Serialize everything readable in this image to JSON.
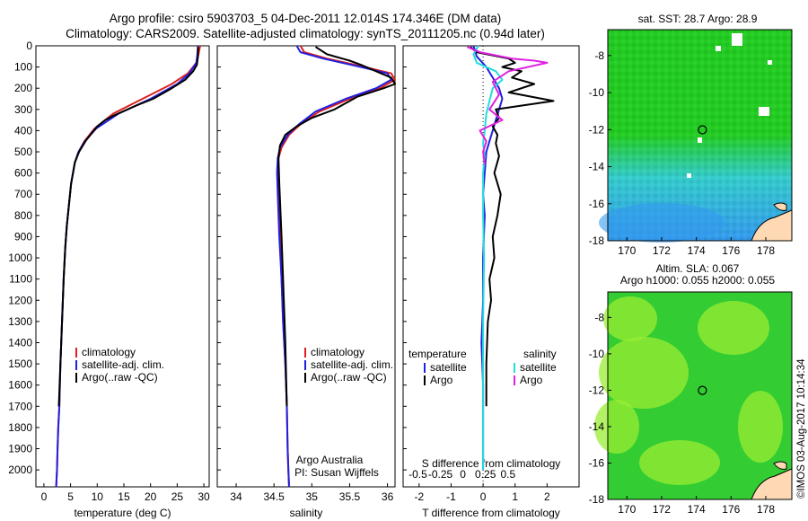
{
  "header": {
    "title_line1": "Argo profile: csiro 5903703_5 04-Dec-2011 12.014S 174.346E (DM data)",
    "title_line2": "Climatology: CARS2009. Satellite-adjusted climatology: synTS_20111205.nc (0.94d later)"
  },
  "maps": {
    "sst_title": "sat. SST: 28.7 Argo: 28.9",
    "sla_title_line1": "Altim. SLA: 0.067",
    "sla_title_line2": "Argo h1000: 0.055 h2000: 0.055",
    "lon_ticks": [
      170,
      172,
      174,
      176,
      178
    ],
    "lat_ticks": [
      -8,
      -10,
      -12,
      -14,
      -16,
      -18
    ],
    "lon_range": [
      168.9,
      179.5
    ],
    "lat_range": [
      -18,
      -6.6
    ],
    "argo_position": {
      "lon": 174.35,
      "lat": -12.01
    },
    "sst_colors": {
      "green": "#22cc22",
      "cyan": "#33cccc",
      "blue": "#3399ee"
    },
    "sla_colors": {
      "green": "#33cc33",
      "yellow_green": "#99ee33"
    },
    "land_color": "#ffd9b3"
  },
  "footer": {
    "stamp": "©IMOS 03-Aug-2017 10:14:34"
  },
  "chart_data": [
    {
      "type": "line",
      "xlabel": "temperature (deg C)",
      "ylabel": "",
      "xlim": [
        -1.5,
        31
      ],
      "ylim": [
        2080,
        0
      ],
      "xticks": [
        0,
        5,
        10,
        15,
        20,
        25,
        30
      ],
      "yticks": [
        0,
        100,
        200,
        300,
        400,
        500,
        600,
        700,
        800,
        900,
        1000,
        1100,
        1200,
        1300,
        1400,
        1500,
        1600,
        1700,
        1800,
        1900,
        2000
      ],
      "legend": {
        "placement": "bottom-center",
        "entries": [
          "climatology",
          "satellite-adj. clim.",
          "Argo(..raw -QC)"
        ]
      },
      "series": [
        {
          "name": "climatology",
          "color": "#e02020",
          "x": [
            29.3,
            29.0,
            28.6,
            27.0,
            24.0,
            18.5,
            13.0,
            9.5,
            7.6,
            6.5,
            5.8,
            5.1,
            4.7,
            4.3,
            4.0,
            3.7,
            3.4,
            3.1,
            2.9,
            2.7,
            2.55,
            2.45,
            2.35,
            2.3
          ],
          "y": [
            0,
            40,
            80,
            130,
            180,
            250,
            320,
            390,
            450,
            500,
            550,
            650,
            750,
            850,
            950,
            1100,
            1300,
            1500,
            1700,
            1800,
            1900,
            2000,
            2050,
            2080
          ]
        },
        {
          "name": "satellite-adj. clim.",
          "color": "#2020e0",
          "x": [
            28.9,
            28.8,
            28.6,
            27.3,
            25.0,
            20.0,
            14.0,
            9.8,
            7.7,
            6.5,
            5.8,
            5.1,
            4.7,
            4.3,
            4.0,
            3.7,
            3.4,
            3.1,
            2.9,
            2.7,
            2.55,
            2.45,
            2.35,
            2.3
          ],
          "y": [
            0,
            40,
            80,
            130,
            180,
            250,
            320,
            390,
            450,
            500,
            550,
            650,
            750,
            850,
            950,
            1100,
            1300,
            1500,
            1700,
            1800,
            1900,
            2000,
            2050,
            2080
          ]
        },
        {
          "name": "Argo(..raw -QC)",
          "color": "#000000",
          "x": [
            28.9,
            28.9,
            28.7,
            28.0,
            26.5,
            24.0,
            20.5,
            17.5,
            13.0,
            11.5,
            10.0,
            9.0,
            7.8,
            6.6,
            5.8,
            5.1,
            4.7,
            4.3,
            4.0,
            3.7,
            3.4,
            3.1,
            2.8
          ],
          "y": [
            5,
            50,
            90,
            120,
            160,
            200,
            250,
            280,
            330,
            350,
            380,
            410,
            450,
            500,
            550,
            650,
            750,
            850,
            950,
            1100,
            1300,
            1500,
            1700
          ]
        }
      ]
    },
    {
      "type": "line",
      "xlabel": "salinity",
      "ylabel": "",
      "xlim": [
        33.75,
        36.1
      ],
      "ylim": [
        2080,
        0
      ],
      "xticks": [
        34,
        34.5,
        35,
        35.5,
        36
      ],
      "xticklabels": [
        "34",
        "34.5",
        "35",
        "35.5",
        "36"
      ],
      "legend": {
        "placement": "bottom-center",
        "entries": [
          "climatology",
          "satellite-adj. clim.",
          "Argo(..raw -QC)"
        ]
      },
      "annotation": [
        "Argo Australia",
        "PI: Susan Wijffels"
      ],
      "series": [
        {
          "name": "climatology",
          "color": "#e02020",
          "x": [
            34.85,
            34.9,
            35.2,
            35.7,
            36.05,
            36.1,
            35.9,
            35.5,
            35.1,
            34.85,
            34.7,
            34.6,
            34.56,
            34.55,
            34.56,
            34.58,
            34.6,
            34.62,
            34.65,
            34.67,
            34.68,
            34.69,
            34.7
          ],
          "y": [
            0,
            30,
            60,
            100,
            130,
            160,
            200,
            250,
            310,
            370,
            420,
            480,
            530,
            600,
            700,
            900,
            1100,
            1300,
            1500,
            1700,
            1900,
            2000,
            2080
          ]
        },
        {
          "name": "satellite-adj. clim.",
          "color": "#2020e0",
          "x": [
            34.8,
            34.85,
            35.15,
            35.65,
            36.0,
            36.05,
            35.85,
            35.45,
            35.05,
            34.83,
            34.68,
            34.58,
            34.55,
            34.54,
            34.55,
            34.57,
            34.6,
            34.62,
            34.65,
            34.67,
            34.68,
            34.69,
            34.7
          ],
          "y": [
            0,
            30,
            60,
            100,
            130,
            160,
            200,
            250,
            310,
            370,
            420,
            480,
            530,
            600,
            700,
            900,
            1100,
            1300,
            1500,
            1700,
            1900,
            2000,
            2080
          ]
        },
        {
          "name": "Argo(..raw -QC)",
          "color": "#000000",
          "x": [
            35.05,
            35.2,
            35.5,
            35.65,
            35.85,
            36.05,
            36.1,
            35.95,
            35.6,
            35.3,
            35.0,
            34.8,
            34.65,
            34.58,
            34.56,
            34.57,
            34.6,
            34.62,
            34.65,
            34.67
          ],
          "y": [
            5,
            40,
            70,
            90,
            120,
            150,
            180,
            200,
            240,
            300,
            340,
            380,
            420,
            470,
            530,
            650,
            900,
            1100,
            1400,
            1700
          ]
        }
      ]
    },
    {
      "type": "line",
      "xlabel": "T difference from climatology",
      "xlabel_top": "S difference from climatology",
      "ylabel": "",
      "xlim": [
        -2.5,
        3
      ],
      "ylim": [
        2080,
        0
      ],
      "xticks": [
        -2,
        -1,
        0,
        1,
        2
      ],
      "top_xticks": [
        -0.5,
        -0.25,
        0,
        0.25,
        0.5
      ],
      "top_xticklabels": [
        "-0.5",
        "-0.25",
        "0",
        "0.25",
        "0.5"
      ],
      "legend": {
        "placement": "bottom-center",
        "group_titles": [
          "temperature",
          "salinity"
        ],
        "entries": [
          "satellite",
          "Argo",
          "satellite",
          "Argo"
        ]
      },
      "series": [
        {
          "name": "satellite",
          "group": "temperature",
          "color": "#2020e0",
          "x": [
            -0.3,
            -0.2,
            0.1,
            0.3,
            0.5,
            0.6,
            0.5,
            0.4,
            0.3,
            0.2,
            0.1,
            0.05,
            0,
            0.05,
            0,
            0,
            -0.05,
            0,
            0,
            0
          ],
          "y": [
            0,
            50,
            100,
            150,
            200,
            250,
            300,
            350,
            400,
            450,
            500,
            600,
            700,
            800,
            1000,
            1200,
            1400,
            1600,
            1800,
            2000
          ]
        },
        {
          "name": "Argo",
          "group": "temperature",
          "color": "#000000",
          "x": [
            -0.4,
            -0.2,
            0.8,
            1.0,
            0.6,
            1.2,
            0.9,
            1.6,
            0.8,
            2.2,
            0.4,
            0.5,
            0.3,
            0.45,
            0.4,
            0.5,
            0.35,
            0.55,
            0.45,
            0.3,
            0.35,
            0.2,
            0.25,
            0.15,
            0.1,
            0.1
          ],
          "y": [
            5,
            30,
            60,
            80,
            100,
            120,
            150,
            180,
            220,
            260,
            300,
            340,
            380,
            420,
            460,
            520,
            600,
            700,
            800,
            900,
            1000,
            1100,
            1200,
            1300,
            1500,
            1700
          ]
        },
        {
          "name": "satellite",
          "group": "salinity",
          "color": "#22dddd",
          "x": [
            -0.15,
            -0.3,
            -0.2,
            0.4,
            0.6,
            0.3,
            0.2,
            0.1,
            0.05,
            0,
            0.05,
            0,
            0,
            0.03,
            0,
            0,
            0,
            0
          ],
          "y": [
            0,
            40,
            80,
            120,
            160,
            200,
            260,
            320,
            400,
            460,
            520,
            600,
            800,
            1000,
            1300,
            1600,
            1800,
            2000
          ]
        },
        {
          "name": "Argo",
          "group": "salinity",
          "color": "#e020e0",
          "x": [
            -0.5,
            -0.1,
            0.9,
            1.6,
            2.0,
            0.8,
            0.3,
            0.5,
            0.2,
            0.6,
            -0.1,
            0.1,
            0.0,
            0.05
          ],
          "y": [
            5,
            30,
            60,
            70,
            80,
            120,
            170,
            230,
            300,
            350,
            400,
            450,
            500,
            560
          ]
        }
      ]
    }
  ]
}
